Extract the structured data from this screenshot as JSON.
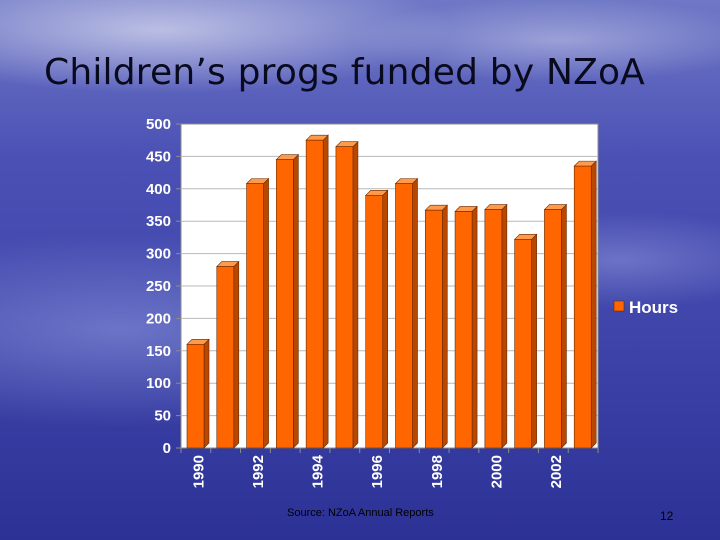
{
  "slide": {
    "title": "Children’s progs funded by NZoA",
    "source": "Source: NZoA Annual Reports",
    "number": "12"
  },
  "colors": {
    "bar_front": "#ff6600",
    "bar_side": "#b94700",
    "bar_top": "#ff9a4a",
    "plot_bg": "#ffffff",
    "plot_frame": "#8c8c8c",
    "gridline": "#b8b8b8"
  },
  "chart_data": {
    "type": "bar",
    "categories": [
      "1990",
      "1991",
      "1992",
      "1993",
      "1994",
      "1995",
      "1996",
      "1997",
      "1998",
      "1999",
      "2000",
      "2001",
      "2002",
      "2003"
    ],
    "tick_labels": [
      "1990",
      "",
      "1992",
      "",
      "1994",
      "",
      "1996",
      "",
      "1998",
      "",
      "2000",
      "",
      "2002",
      ""
    ],
    "series": [
      {
        "name": "Hours",
        "values": [
          160,
          280,
          408,
          445,
          475,
          465,
          390,
          408,
          367,
          365,
          368,
          322,
          368,
          435
        ]
      }
    ],
    "yticks": [
      0,
      50,
      100,
      150,
      200,
      250,
      300,
      350,
      400,
      450,
      500
    ],
    "ylim": [
      0,
      500
    ],
    "grid": true,
    "legend": "right",
    "style": "3d-column"
  }
}
